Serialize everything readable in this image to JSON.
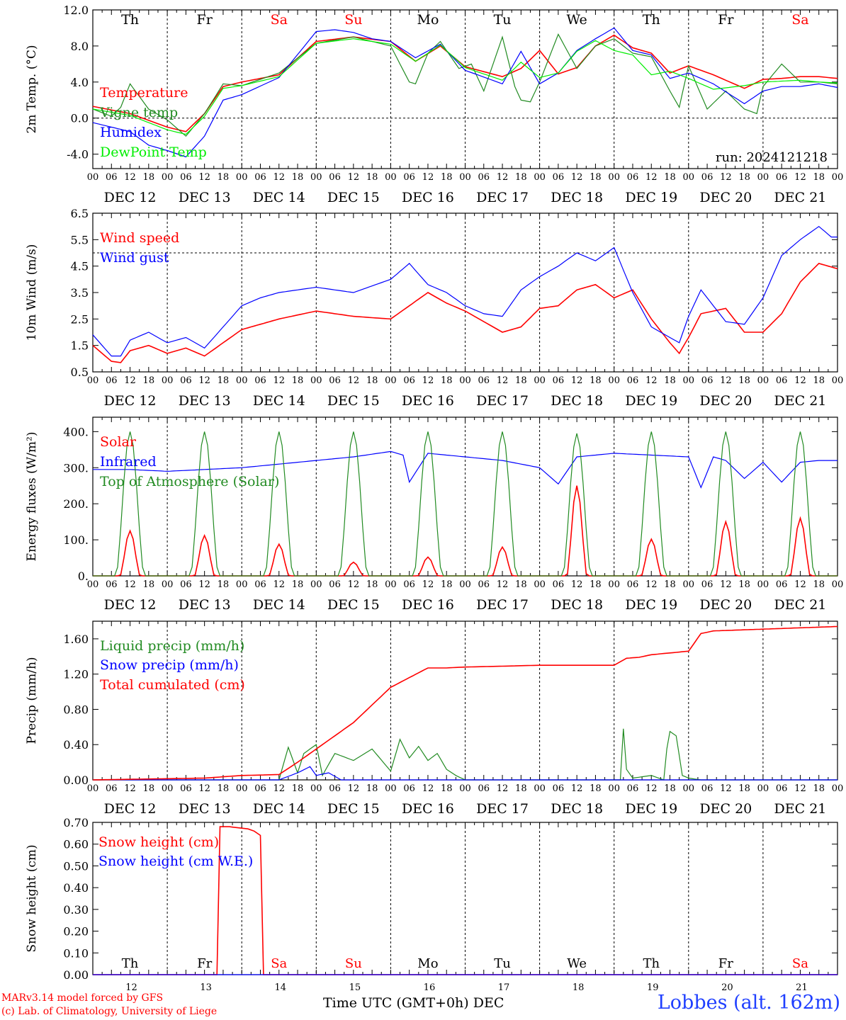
{
  "station": "Lobbes (alt. 162m)",
  "credits": [
    "MARv3.14 model forced by GFS",
    "(c) Lab. of Climatology, University of Liege"
  ],
  "x_axis_title": "Time UTC (GMT+0h) DEC",
  "run_label": "run: 2024121218",
  "days": [
    "Th",
    "Fr",
    "Sa",
    "Su",
    "Mo",
    "Tu",
    "We",
    "Th",
    "Fr",
    "Sa"
  ],
  "weekend_days": [
    "Sa",
    "Su"
  ],
  "dates": [
    "DEC 12",
    "DEC 13",
    "DEC 14",
    "DEC 15",
    "DEC 16",
    "DEC 17",
    "DEC 18",
    "DEC 19",
    "DEC 20",
    "DEC 21"
  ],
  "day_numbers": [
    "12",
    "13",
    "14",
    "15",
    "16",
    "17",
    "18",
    "19",
    "20",
    "21"
  ],
  "hour_ticks": [
    "00",
    "06",
    "12",
    "18"
  ],
  "colors": {
    "red": "#ff0000",
    "green": "#228b22",
    "blue": "#0000ff",
    "lightgreen": "#00ee00",
    "weekend": "#ff0000"
  },
  "chart_data": [
    {
      "type": "line",
      "ylabel": "2m Temp. (°C)",
      "ylim": [
        -5.6,
        12
      ],
      "yticks": [
        "-4.0",
        "0.0",
        "4.0",
        "8.0",
        "12.0"
      ],
      "ytick_values": [
        -4,
        0,
        4,
        8,
        12
      ],
      "dashed_line": 0,
      "x_hours": "0..240 UTC hours from DEC 12 00",
      "series": [
        {
          "name": "Temperature",
          "color": "red",
          "x": [
            0,
            12,
            24,
            30,
            36,
            42,
            48,
            60,
            72,
            84,
            96,
            104,
            112,
            120,
            132,
            138,
            144,
            150,
            156,
            162,
            168,
            174,
            180,
            186,
            192,
            200,
            210,
            216,
            222,
            228,
            234,
            240
          ],
          "values": [
            1.3,
            0.5,
            -1.0,
            -1.5,
            0.5,
            3.5,
            4.0,
            4.8,
            8.5,
            9.0,
            8.5,
            6.3,
            8.0,
            5.7,
            4.6,
            5.5,
            7.5,
            4.9,
            5.6,
            8.0,
            9.2,
            7.8,
            7.2,
            5.0,
            5.8,
            4.8,
            3.3,
            4.3,
            4.4,
            4.6,
            4.6,
            4.4
          ]
        },
        {
          "name": "Vigne temp",
          "color": "green",
          "x": [
            0,
            6,
            9,
            12,
            18,
            24,
            30,
            36,
            42,
            48,
            60,
            72,
            84,
            96,
            102,
            104,
            108,
            112,
            118,
            122,
            126,
            132,
            136,
            138,
            141,
            144,
            150,
            156,
            162,
            168,
            174,
            180,
            186,
            189,
            192,
            198,
            204,
            210,
            214,
            216,
            222,
            228,
            234,
            240
          ],
          "values": [
            1.0,
            0.2,
            1.2,
            3.8,
            1.0,
            -0.2,
            -2.0,
            0.5,
            3.8,
            3.6,
            5.0,
            8.3,
            9.0,
            8.0,
            4.0,
            3.8,
            7.2,
            8.5,
            5.5,
            6.0,
            3.0,
            9.0,
            3.5,
            2.0,
            1.8,
            4.0,
            9.3,
            5.5,
            8.0,
            8.8,
            7.2,
            6.8,
            3.0,
            1.2,
            5.8,
            1.0,
            3.0,
            1.0,
            0.5,
            3.5,
            6.0,
            4.0,
            4.0,
            3.8
          ]
        },
        {
          "name": "Humidex",
          "color": "blue",
          "x": [
            0,
            12,
            18,
            24,
            30,
            36,
            42,
            48,
            60,
            72,
            78,
            84,
            90,
            96,
            104,
            112,
            120,
            132,
            138,
            144,
            150,
            156,
            162,
            168,
            174,
            180,
            186,
            192,
            200,
            210,
            216,
            222,
            228,
            234,
            240
          ],
          "values": [
            -0.5,
            -1.5,
            -3.0,
            -3.6,
            -4.3,
            -2.0,
            2.0,
            2.6,
            4.5,
            9.6,
            9.8,
            9.5,
            8.8,
            8.5,
            6.7,
            8.2,
            5.3,
            3.8,
            7.4,
            3.8,
            5.0,
            7.5,
            8.8,
            10.0,
            7.5,
            7.0,
            4.4,
            5.0,
            3.8,
            1.6,
            3.0,
            3.5,
            3.5,
            3.8,
            3.4
          ]
        },
        {
          "name": "DewPoint Temp",
          "color": "lightgreen",
          "x": [
            0,
            12,
            24,
            30,
            36,
            42,
            48,
            60,
            72,
            84,
            96,
            104,
            112,
            120,
            132,
            138,
            144,
            150,
            156,
            162,
            168,
            174,
            180,
            186,
            192,
            200,
            210,
            216,
            222,
            228,
            234,
            240
          ],
          "values": [
            1.0,
            0.3,
            -1.3,
            -1.8,
            0.2,
            3.3,
            3.6,
            4.6,
            8.3,
            8.8,
            8.2,
            6.3,
            8.1,
            5.6,
            4.2,
            6.2,
            4.5,
            5.0,
            7.4,
            8.6,
            7.5,
            7.0,
            4.8,
            5.2,
            4.4,
            3.2,
            3.6,
            4.0,
            4.1,
            4.2,
            4.0,
            3.9
          ]
        }
      ]
    },
    {
      "type": "line",
      "ylabel": "10m Wind (m/s)",
      "ylim": [
        0.5,
        6.5
      ],
      "yticks": [
        "0.5",
        "1.5",
        "2.5",
        "3.5",
        "4.5",
        "5.5",
        "6.5"
      ],
      "ytick_values": [
        0.5,
        1.5,
        2.5,
        3.5,
        4.5,
        5.5,
        6.5
      ],
      "dashed_line": 5.0,
      "series": [
        {
          "name": "Wind speed",
          "color": "red",
          "x": [
            0,
            6,
            9,
            12,
            18,
            24,
            30,
            36,
            42,
            48,
            54,
            60,
            72,
            84,
            96,
            108,
            114,
            120,
            126,
            132,
            138,
            144,
            150,
            156,
            162,
            168,
            174,
            180,
            186,
            189,
            192,
            196,
            204,
            210,
            216,
            222,
            228,
            234,
            240
          ],
          "values": [
            1.5,
            0.9,
            0.85,
            1.3,
            1.5,
            1.2,
            1.4,
            1.1,
            1.6,
            2.1,
            2.3,
            2.5,
            2.8,
            2.6,
            2.5,
            3.5,
            3.1,
            2.8,
            2.4,
            2.0,
            2.2,
            2.9,
            3.0,
            3.6,
            3.8,
            3.3,
            3.6,
            2.5,
            1.6,
            1.2,
            1.8,
            2.7,
            2.9,
            2.0,
            2.0,
            2.7,
            3.9,
            4.6,
            4.4
          ]
        },
        {
          "name": "Wind gust",
          "color": "blue",
          "x": [
            0,
            6,
            9,
            12,
            18,
            24,
            30,
            36,
            42,
            48,
            54,
            60,
            72,
            84,
            96,
            102,
            108,
            114,
            120,
            126,
            132,
            138,
            144,
            150,
            156,
            162,
            168,
            174,
            180,
            186,
            189,
            192,
            196,
            204,
            210,
            216,
            222,
            228,
            234,
            238,
            240
          ],
          "values": [
            1.9,
            1.1,
            1.1,
            1.7,
            2.0,
            1.6,
            1.8,
            1.4,
            2.2,
            3.0,
            3.3,
            3.5,
            3.7,
            3.5,
            4.0,
            4.6,
            3.8,
            3.5,
            3.0,
            2.7,
            2.6,
            3.6,
            4.1,
            4.5,
            5.0,
            4.7,
            5.2,
            3.5,
            2.2,
            1.8,
            1.6,
            2.6,
            3.6,
            2.4,
            2.3,
            3.3,
            4.9,
            5.5,
            6.0,
            5.6,
            5.6
          ]
        }
      ]
    },
    {
      "type": "line",
      "ylabel": "Energy fluxes (W/m²)",
      "ylim": [
        0,
        440
      ],
      "yticks": [
        "0.",
        "100.",
        "200.",
        "300.",
        "400."
      ],
      "ytick_values": [
        0,
        100,
        200,
        300,
        400
      ],
      "dashed_line": null,
      "series": [
        {
          "name": "Solar",
          "color": "red",
          "daily_peaks": [
            125,
            112,
            88,
            38,
            52,
            80,
            250,
            102,
            150,
            160
          ]
        },
        {
          "name": "Infrared",
          "color": "blue",
          "x": [
            0,
            12,
            24,
            36,
            48,
            60,
            72,
            84,
            96,
            100,
            102,
            108,
            120,
            132,
            144,
            150,
            156,
            168,
            180,
            192,
            196,
            200,
            204,
            210,
            216,
            222,
            228,
            234,
            240
          ],
          "values": [
            295,
            295,
            290,
            295,
            300,
            310,
            320,
            330,
            345,
            335,
            260,
            340,
            330,
            320,
            300,
            255,
            330,
            340,
            335,
            330,
            245,
            330,
            320,
            270,
            315,
            260,
            315,
            320,
            320
          ]
        },
        {
          "name": "Top of Atmosphere (Solar)",
          "color": "green",
          "daily_peaks": [
            400,
            400,
            400,
            400,
            400,
            400,
            395,
            400,
            400,
            400
          ]
        }
      ]
    },
    {
      "type": "line",
      "ylabel": "Precip (mm/h)",
      "ylim": [
        0,
        1.8
      ],
      "yticks": [
        "0.00",
        "0.40",
        "0.80",
        "1.20",
        "1.60"
      ],
      "ytick_values": [
        0,
        0.4,
        0.8,
        1.2,
        1.6
      ],
      "dashed_line": null,
      "series": [
        {
          "name": "Liquid precip (mm/h)",
          "color": "green",
          "x": [
            0,
            60,
            63,
            66,
            68,
            72,
            74,
            78,
            84,
            90,
            96,
            99,
            102,
            105,
            108,
            111,
            114,
            117,
            120,
            144,
            170,
            171,
            172,
            174,
            180,
            184,
            185,
            186,
            188,
            190,
            192,
            196,
            200,
            240
          ],
          "values": [
            0,
            0,
            0.37,
            0.08,
            0.3,
            0.4,
            0.05,
            0.3,
            0.22,
            0.35,
            0.1,
            0.46,
            0.25,
            0.38,
            0.22,
            0.3,
            0.12,
            0.05,
            0,
            0,
            0,
            0.58,
            0.12,
            0.02,
            0.05,
            0,
            0.35,
            0.55,
            0.5,
            0.05,
            0.02,
            0,
            0,
            0
          ]
        },
        {
          "name": "Snow precip (mm/h)",
          "color": "blue",
          "x": [
            0,
            60,
            66,
            70,
            72,
            76,
            80,
            240
          ],
          "values": [
            0,
            0,
            0.08,
            0.15,
            0.05,
            0.08,
            0,
            0
          ]
        },
        {
          "name": "Total cumulated (cm)",
          "color": "red",
          "x": [
            0,
            36,
            48,
            60,
            66,
            72,
            84,
            96,
            108,
            114,
            120,
            144,
            168,
            172,
            176,
            180,
            186,
            192,
            196,
            200,
            240
          ],
          "values": [
            0,
            0.02,
            0.05,
            0.06,
            0.2,
            0.35,
            0.65,
            1.05,
            1.27,
            1.27,
            1.28,
            1.3,
            1.3,
            1.38,
            1.39,
            1.42,
            1.44,
            1.46,
            1.66,
            1.69,
            1.74
          ]
        }
      ]
    },
    {
      "type": "line",
      "ylabel": "Snow height (cm)",
      "ylim": [
        0,
        0.7
      ],
      "yticks": [
        "0.00",
        "0.10",
        "0.20",
        "0.30",
        "0.40",
        "0.50",
        "0.60",
        "0.70"
      ],
      "ytick_values": [
        0,
        0.1,
        0.2,
        0.3,
        0.4,
        0.5,
        0.6,
        0.7
      ],
      "dashed_line": null,
      "series": [
        {
          "name": "Snow height (cm)",
          "color": "red",
          "x": [
            0,
            40.5,
            41,
            44,
            50,
            52,
            54,
            54.5,
            240
          ],
          "values": [
            0,
            0,
            0.68,
            0.68,
            0.67,
            0.66,
            0.64,
            0,
            0
          ]
        },
        {
          "name": "Snow height (cm W.E.)",
          "color": "blue",
          "x": [
            0,
            240
          ],
          "values": [
            0,
            0
          ]
        }
      ]
    }
  ]
}
